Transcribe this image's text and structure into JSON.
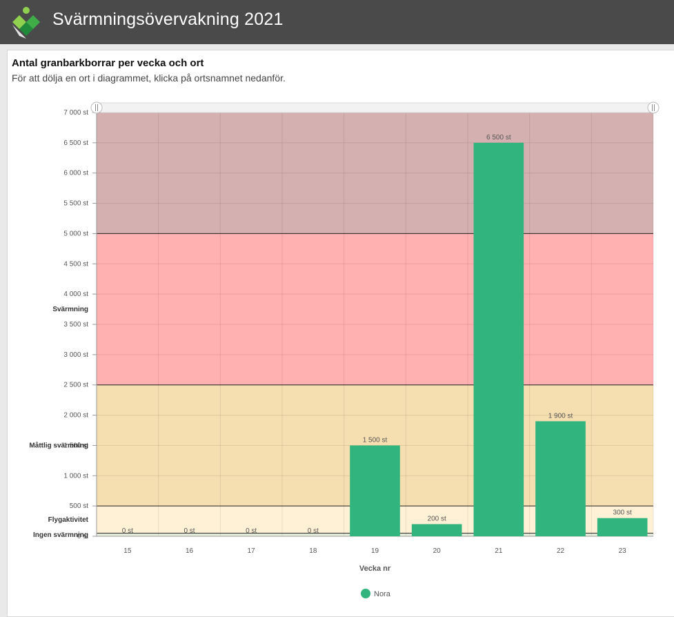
{
  "app": {
    "title": "Svärmningsövervakning 2021"
  },
  "panel": {
    "title": "Antal granbarkborrar per vecka och ort",
    "subtitle": "För att dölja en ort i diagrammet, klicka på ortsnamnet nedanför."
  },
  "colors": {
    "header_bg": "#4a4a4a",
    "bar": "#31b47e",
    "band_very_high": "#d4b0b0",
    "band_high": "#ffb0b0",
    "band_moderate": "#f5deb0",
    "band_flight": "#fff1d6",
    "band_none": "#e6efdd"
  },
  "chart_data": {
    "type": "bar",
    "categories": [
      "15",
      "16",
      "17",
      "18",
      "19",
      "20",
      "21",
      "22",
      "23"
    ],
    "series": [
      {
        "name": "Nora",
        "values": [
          0,
          0,
          0,
          0,
          1500,
          200,
          6500,
          1900,
          300
        ],
        "value_labels": [
          "0 st",
          "0 st",
          "0 st",
          "0 st",
          "1 500 st",
          "200 st",
          "6 500 st",
          "1 900 st",
          "300 st"
        ]
      }
    ],
    "xlabel": "Vecka nr",
    "ylabel": "",
    "ylim": [
      0,
      7000
    ],
    "yticks": [
      0,
      500,
      1000,
      1500,
      2000,
      2500,
      3000,
      3500,
      4000,
      4500,
      5000,
      5500,
      6000,
      6500,
      7000
    ],
    "ytick_labels": [
      "0 st",
      "500 st",
      "1 000 st",
      "1 500 st",
      "2 000 st",
      "2 500 st",
      "3 000 st",
      "3 500 st",
      "4 000 st",
      "4 500 st",
      "5 000 st",
      "5 500 st",
      "6 000 st",
      "6 500 st",
      "7 000 st"
    ],
    "bands": [
      {
        "from": 0,
        "to": 50,
        "label": "Ingen svärmning",
        "color": "#e6efdd"
      },
      {
        "from": 50,
        "to": 500,
        "label": "Flygaktivitet",
        "color": "#fff1d6"
      },
      {
        "from": 500,
        "to": 2500,
        "label": "Måttlig svärmning",
        "color": "#f5deb0"
      },
      {
        "from": 2500,
        "to": 5000,
        "label": "Svärmning",
        "color": "#ffb0b0"
      },
      {
        "from": 5000,
        "to": 7000,
        "label": "",
        "color": "#d4b0b0"
      }
    ],
    "grid": true,
    "legend_position": "bottom-center"
  }
}
